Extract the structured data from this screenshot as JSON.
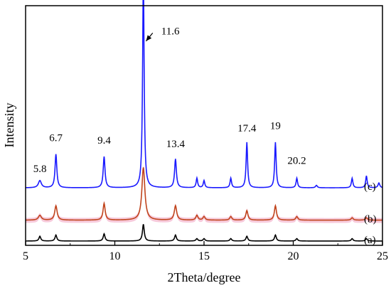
{
  "chart_data": {
    "type": "line",
    "title": "",
    "xlabel": "2Theta/degree",
    "ylabel": "Intensity",
    "xlim": [
      5,
      25
    ],
    "x_ticks": [
      5,
      10,
      15,
      20,
      25
    ],
    "grid": false,
    "colors": {
      "c": "#1a1aff",
      "b": "#c0441c",
      "b_fill": "#f4b8cf",
      "a": "#000000"
    },
    "series": [
      {
        "name": "(c)",
        "key": "c",
        "baseline": 0.24,
        "peaks": [
          [
            5.8,
            0.03,
            0.1
          ],
          [
            6.7,
            0.14,
            0.06
          ],
          [
            9.4,
            0.13,
            0.06
          ],
          [
            11.6,
            0.89,
            0.05
          ],
          [
            13.4,
            0.12,
            0.06
          ],
          [
            14.6,
            0.04,
            0.05
          ],
          [
            15.0,
            0.03,
            0.05
          ],
          [
            16.5,
            0.04,
            0.05
          ],
          [
            17.4,
            0.19,
            0.05
          ],
          [
            19.0,
            0.19,
            0.05
          ],
          [
            20.2,
            0.04,
            0.05
          ],
          [
            21.3,
            0.01,
            0.06
          ],
          [
            23.3,
            0.04,
            0.05
          ],
          [
            24.1,
            0.05,
            0.05
          ],
          [
            24.8,
            0.02,
            0.06
          ]
        ]
      },
      {
        "name": "(b)",
        "key": "b",
        "baseline": 0.105,
        "peaks": [
          [
            5.8,
            0.02,
            0.1
          ],
          [
            6.7,
            0.06,
            0.08
          ],
          [
            9.4,
            0.07,
            0.07
          ],
          [
            11.6,
            0.22,
            0.1
          ],
          [
            13.4,
            0.06,
            0.08
          ],
          [
            14.6,
            0.02,
            0.07
          ],
          [
            15.0,
            0.015,
            0.07
          ],
          [
            16.5,
            0.015,
            0.07
          ],
          [
            17.4,
            0.04,
            0.07
          ],
          [
            19.0,
            0.06,
            0.07
          ],
          [
            20.2,
            0.015,
            0.07
          ],
          [
            23.3,
            0.01,
            0.07
          ],
          [
            24.1,
            0.01,
            0.07
          ]
        ]
      },
      {
        "name": "(a)",
        "key": "a",
        "baseline": 0.018,
        "peaks": [
          [
            5.8,
            0.02,
            0.06
          ],
          [
            6.7,
            0.025,
            0.06
          ],
          [
            9.4,
            0.03,
            0.06
          ],
          [
            11.6,
            0.07,
            0.06
          ],
          [
            13.4,
            0.025,
            0.06
          ],
          [
            14.6,
            0.01,
            0.06
          ],
          [
            15.0,
            0.01,
            0.06
          ],
          [
            16.5,
            0.01,
            0.06
          ],
          [
            17.4,
            0.02,
            0.06
          ],
          [
            19.0,
            0.025,
            0.06
          ],
          [
            20.2,
            0.01,
            0.06
          ],
          [
            23.3,
            0.01,
            0.06
          ],
          [
            24.1,
            0.01,
            0.06
          ]
        ]
      }
    ],
    "annotations": [
      {
        "text": "5.8",
        "x": 5.8,
        "y": 0.305
      },
      {
        "text": "6.7",
        "x": 6.7,
        "y": 0.435
      },
      {
        "text": "9.4",
        "x": 9.4,
        "y": 0.425
      },
      {
        "text": "13.4",
        "x": 13.4,
        "y": 0.41
      },
      {
        "text": "17.4",
        "x": 17.4,
        "y": 0.475
      },
      {
        "text": "19",
        "x": 19.0,
        "y": 0.485
      },
      {
        "text": "20.2",
        "x": 20.2,
        "y": 0.34
      }
    ],
    "arrow_annotation": {
      "text": "11.6",
      "from": [
        12.6,
        0.91
      ],
      "to": [
        11.75,
        0.87
      ]
    }
  }
}
